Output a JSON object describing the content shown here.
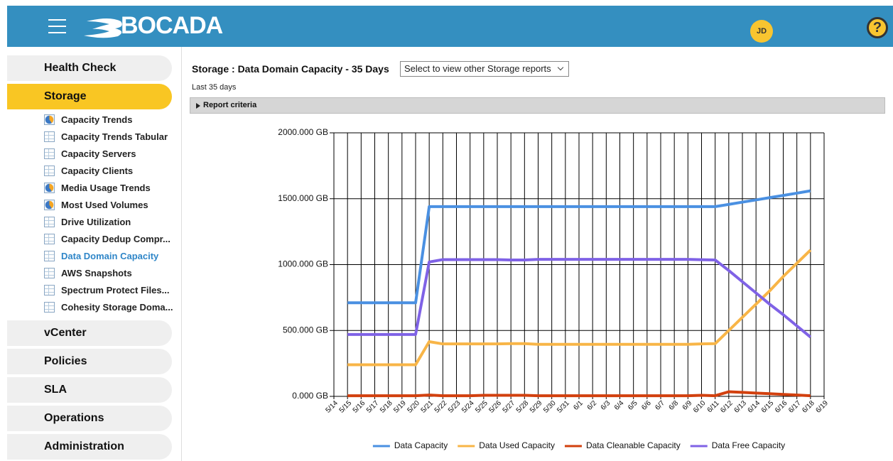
{
  "header": {
    "logo": "BOCADA",
    "user": "JD",
    "help": "?"
  },
  "sidebar": {
    "sections": [
      {
        "label": "Health Check"
      },
      {
        "label": "Storage",
        "active": true,
        "items": [
          {
            "label": "Capacity Trends",
            "icon": "pie"
          },
          {
            "label": "Capacity Trends Tabular",
            "icon": "table"
          },
          {
            "label": "Capacity Servers",
            "icon": "table"
          },
          {
            "label": "Capacity Clients",
            "icon": "table"
          },
          {
            "label": "Media Usage Trends",
            "icon": "pie"
          },
          {
            "label": "Most Used Volumes",
            "icon": "pie"
          },
          {
            "label": "Drive Utilization",
            "icon": "table"
          },
          {
            "label": "Capacity Dedup Compr...",
            "icon": "table"
          },
          {
            "label": "Data Domain Capacity",
            "icon": "table",
            "active": true
          },
          {
            "label": "AWS Snapshots",
            "icon": "table"
          },
          {
            "label": "Spectrum Protect Files...",
            "icon": "table"
          },
          {
            "label": "Cohesity Storage Doma...",
            "icon": "table"
          }
        ]
      },
      {
        "label": "vCenter"
      },
      {
        "label": "Policies"
      },
      {
        "label": "SLA"
      },
      {
        "label": "Operations"
      },
      {
        "label": "Administration"
      }
    ]
  },
  "report": {
    "title": "Storage : Data Domain Capacity - 35 Days",
    "dropdown": "Select to view other Storage reports",
    "period": "Last 35 days",
    "criteria": "Report criteria"
  },
  "chart_data": {
    "type": "line",
    "categories": [
      "5/14",
      "5/15",
      "5/16",
      "5/17",
      "5/18",
      "5/19",
      "5/20",
      "5/21",
      "5/22",
      "5/23",
      "5/24",
      "5/25",
      "5/26",
      "5/27",
      "5/28",
      "5/29",
      "5/30",
      "5/31",
      "6/1",
      "6/2",
      "6/3",
      "6/4",
      "6/5",
      "6/6",
      "6/7",
      "6/8",
      "6/9",
      "6/10",
      "6/11",
      "6/12",
      "6/13",
      "6/14",
      "6/15",
      "6/16",
      "6/17",
      "6/18",
      "6/19"
    ],
    "series": [
      {
        "name": "Data Capacity",
        "color": "#4a90e2",
        "values": [
          null,
          710,
          710,
          710,
          710,
          710,
          710,
          1440,
          1440,
          1440,
          1440,
          1440,
          1440,
          1440,
          1440,
          1440,
          1440,
          1440,
          1440,
          1440,
          1440,
          1440,
          1440,
          1440,
          1440,
          1440,
          1440,
          1440,
          1440,
          1457,
          1474,
          1491,
          1508,
          1525,
          1542,
          1560,
          null
        ]
      },
      {
        "name": "Data Used Capacity",
        "color": "#f8b547",
        "values": [
          null,
          240,
          240,
          240,
          240,
          240,
          240,
          415,
          398,
          398,
          398,
          398,
          398,
          400,
          400,
          395,
          395,
          395,
          395,
          395,
          395,
          395,
          395,
          395,
          395,
          395,
          395,
          398,
          400,
          500,
          600,
          700,
          800,
          910,
          1010,
          1110,
          null
        ]
      },
      {
        "name": "Data Cleanable Capacity",
        "color": "#d2400e",
        "values": [
          null,
          5,
          5,
          5,
          5,
          5,
          5,
          10,
          5,
          5,
          5,
          8,
          8,
          8,
          8,
          5,
          5,
          5,
          5,
          5,
          5,
          5,
          5,
          5,
          5,
          5,
          5,
          8,
          5,
          35,
          30,
          25,
          20,
          15,
          10,
          5,
          null
        ]
      },
      {
        "name": "Data Free Capacity",
        "color": "#7f62e6",
        "values": [
          null,
          470,
          470,
          470,
          470,
          470,
          470,
          1020,
          1038,
          1038,
          1038,
          1038,
          1038,
          1035,
          1035,
          1040,
          1040,
          1040,
          1040,
          1040,
          1040,
          1040,
          1040,
          1040,
          1040,
          1040,
          1040,
          1037,
          1035,
          955,
          870,
          785,
          700,
          620,
          535,
          450,
          null
        ]
      }
    ],
    "ylim": [
      0,
      2000
    ],
    "yticks": [
      {
        "value": 0,
        "label": "0.000 GB"
      },
      {
        "value": 500,
        "label": "500.000 GB"
      },
      {
        "value": 1000,
        "label": "1000.000 GB"
      },
      {
        "value": 1500,
        "label": "1500.000 GB"
      },
      {
        "value": 2000,
        "label": "2000.000 GB"
      }
    ],
    "grid": true,
    "legend": "bottom"
  }
}
